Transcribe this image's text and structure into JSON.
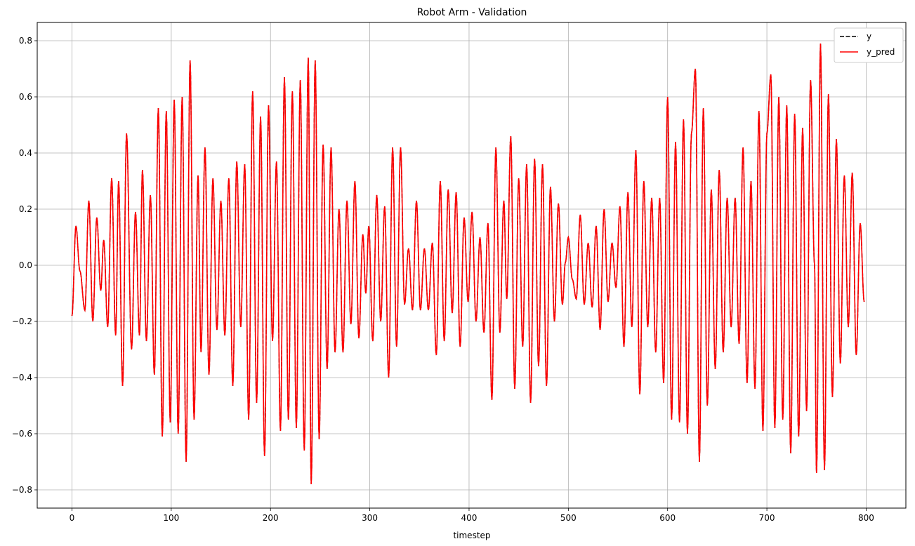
{
  "chart_data": {
    "type": "line",
    "title": "Robot Arm - Validation",
    "xlabel": "timestep",
    "ylabel": "",
    "xlim": [
      -35,
      840
    ],
    "ylim": [
      -0.865,
      0.865
    ],
    "xticks": [
      0,
      100,
      200,
      300,
      400,
      500,
      600,
      700,
      800
    ],
    "yticks": [
      -0.8,
      -0.6,
      -0.4,
      -0.2,
      0.0,
      0.2,
      0.4,
      0.6,
      0.8
    ],
    "ytick_labels": [
      "−0.8",
      "−0.6",
      "−0.4",
      "−0.2",
      "0.0",
      "0.2",
      "0.4",
      "0.6",
      "0.8"
    ],
    "grid": true,
    "legend_position": "top-right",
    "series": [
      {
        "name": "y",
        "color": "#000000",
        "style": "dashed"
      },
      {
        "name": "y_pred",
        "color": "#ff0000",
        "style": "solid"
      }
    ],
    "extrema": [
      [
        0,
        -0.18
      ],
      [
        4,
        0.14
      ],
      [
        8,
        -0.02
      ],
      [
        13,
        -0.16
      ],
      [
        17,
        0.23
      ],
      [
        21,
        -0.2
      ],
      [
        25,
        0.17
      ],
      [
        29,
        -0.09
      ],
      [
        32,
        0.09
      ],
      [
        36,
        -0.22
      ],
      [
        40,
        0.31
      ],
      [
        44,
        -0.25
      ],
      [
        47,
        0.3
      ],
      [
        51,
        -0.43
      ],
      [
        55,
        0.47
      ],
      [
        60,
        -0.3
      ],
      [
        64,
        0.19
      ],
      [
        68,
        -0.25
      ],
      [
        71,
        0.34
      ],
      [
        75,
        -0.27
      ],
      [
        79,
        0.25
      ],
      [
        83,
        -0.39
      ],
      [
        87,
        0.56
      ],
      [
        91,
        -0.61
      ],
      [
        95,
        0.55
      ],
      [
        99,
        -0.56
      ],
      [
        103,
        0.59
      ],
      [
        107,
        -0.6
      ],
      [
        111,
        0.6
      ],
      [
        115,
        -0.7
      ],
      [
        119,
        0.73
      ],
      [
        123,
        -0.55
      ],
      [
        127,
        0.32
      ],
      [
        130,
        -0.31
      ],
      [
        134,
        0.42
      ],
      [
        138,
        -0.39
      ],
      [
        142,
        0.31
      ],
      [
        146,
        -0.23
      ],
      [
        150,
        0.23
      ],
      [
        154,
        -0.25
      ],
      [
        158,
        0.31
      ],
      [
        162,
        -0.43
      ],
      [
        166,
        0.37
      ],
      [
        170,
        -0.22
      ],
      [
        174,
        0.36
      ],
      [
        178,
        -0.55
      ],
      [
        182,
        0.62
      ],
      [
        186,
        -0.49
      ],
      [
        190,
        0.53
      ],
      [
        194,
        -0.68
      ],
      [
        198,
        0.57
      ],
      [
        202,
        -0.27
      ],
      [
        206,
        0.37
      ],
      [
        210,
        -0.59
      ],
      [
        214,
        0.67
      ],
      [
        218,
        -0.55
      ],
      [
        222,
        0.62
      ],
      [
        226,
        -0.58
      ],
      [
        230,
        0.66
      ],
      [
        234,
        -0.66
      ],
      [
        238,
        0.74
      ],
      [
        241,
        -0.78
      ],
      [
        245,
        0.73
      ],
      [
        249,
        -0.62
      ],
      [
        253,
        0.43
      ],
      [
        257,
        -0.37
      ],
      [
        261,
        0.42
      ],
      [
        265,
        -0.31
      ],
      [
        269,
        0.2
      ],
      [
        273,
        -0.31
      ],
      [
        277,
        0.23
      ],
      [
        281,
        -0.21
      ],
      [
        285,
        0.3
      ],
      [
        289,
        -0.26
      ],
      [
        293,
        0.11
      ],
      [
        296,
        -0.1
      ],
      [
        299,
        0.14
      ],
      [
        303,
        -0.27
      ],
      [
        307,
        0.25
      ],
      [
        311,
        -0.2
      ],
      [
        315,
        0.21
      ],
      [
        319,
        -0.4
      ],
      [
        323,
        0.42
      ],
      [
        327,
        -0.29
      ],
      [
        331,
        0.42
      ],
      [
        335,
        -0.14
      ],
      [
        339,
        0.06
      ],
      [
        343,
        -0.16
      ],
      [
        347,
        0.23
      ],
      [
        351,
        -0.16
      ],
      [
        355,
        0.06
      ],
      [
        359,
        -0.16
      ],
      [
        363,
        0.08
      ],
      [
        367,
        -0.32
      ],
      [
        371,
        0.3
      ],
      [
        375,
        -0.27
      ],
      [
        379,
        0.27
      ],
      [
        383,
        -0.17
      ],
      [
        387,
        0.26
      ],
      [
        391,
        -0.29
      ],
      [
        395,
        0.17
      ],
      [
        399,
        -0.13
      ],
      [
        403,
        0.19
      ],
      [
        407,
        -0.2
      ],
      [
        411,
        0.1
      ],
      [
        415,
        -0.24
      ],
      [
        419,
        0.15
      ],
      [
        423,
        -0.48
      ],
      [
        427,
        0.42
      ],
      [
        431,
        -0.24
      ],
      [
        435,
        0.23
      ],
      [
        438,
        -0.12
      ],
      [
        442,
        0.46
      ],
      [
        446,
        -0.44
      ],
      [
        450,
        0.31
      ],
      [
        454,
        -0.29
      ],
      [
        458,
        0.36
      ],
      [
        462,
        -0.49
      ],
      [
        466,
        0.38
      ],
      [
        470,
        -0.36
      ],
      [
        474,
        0.36
      ],
      [
        478,
        -0.43
      ],
      [
        482,
        0.28
      ],
      [
        486,
        -0.2
      ],
      [
        490,
        0.22
      ],
      [
        494,
        -0.14
      ],
      [
        497,
        0.01
      ],
      [
        500,
        0.1
      ],
      [
        504,
        -0.05
      ],
      [
        508,
        -0.12
      ],
      [
        512,
        0.18
      ],
      [
        516,
        -0.14
      ],
      [
        520,
        0.08
      ],
      [
        524,
        -0.15
      ],
      [
        528,
        0.14
      ],
      [
        532,
        -0.23
      ],
      [
        536,
        0.2
      ],
      [
        540,
        -0.13
      ],
      [
        544,
        0.08
      ],
      [
        548,
        -0.08
      ],
      [
        552,
        0.21
      ],
      [
        556,
        -0.29
      ],
      [
        560,
        0.26
      ],
      [
        564,
        -0.22
      ],
      [
        568,
        0.41
      ],
      [
        572,
        -0.46
      ],
      [
        576,
        0.3
      ],
      [
        580,
        -0.22
      ],
      [
        584,
        0.24
      ],
      [
        588,
        -0.31
      ],
      [
        592,
        0.24
      ],
      [
        596,
        -0.42
      ],
      [
        600,
        0.6
      ],
      [
        604,
        -0.55
      ],
      [
        608,
        0.44
      ],
      [
        612,
        -0.56
      ],
      [
        616,
        0.52
      ],
      [
        620,
        -0.6
      ],
      [
        624,
        0.47
      ],
      [
        628,
        0.7
      ],
      [
        632,
        -0.7
      ],
      [
        636,
        0.56
      ],
      [
        640,
        -0.5
      ],
      [
        644,
        0.27
      ],
      [
        648,
        -0.37
      ],
      [
        652,
        0.34
      ],
      [
        656,
        -0.31
      ],
      [
        660,
        0.24
      ],
      [
        664,
        -0.22
      ],
      [
        668,
        0.24
      ],
      [
        672,
        -0.28
      ],
      [
        676,
        0.42
      ],
      [
        680,
        -0.42
      ],
      [
        684,
        0.3
      ],
      [
        688,
        -0.44
      ],
      [
        692,
        0.55
      ],
      [
        696,
        -0.59
      ],
      [
        700,
        0.47
      ],
      [
        704,
        0.68
      ],
      [
        708,
        -0.58
      ],
      [
        712,
        0.6
      ],
      [
        716,
        -0.55
      ],
      [
        720,
        0.57
      ],
      [
        724,
        -0.67
      ],
      [
        728,
        0.54
      ],
      [
        732,
        -0.61
      ],
      [
        736,
        0.49
      ],
      [
        740,
        -0.52
      ],
      [
        744,
        0.66
      ],
      [
        748,
        0.0
      ],
      [
        750,
        -0.74
      ],
      [
        754,
        0.79
      ],
      [
        758,
        -0.73
      ],
      [
        762,
        0.61
      ],
      [
        766,
        -0.47
      ],
      [
        770,
        0.45
      ],
      [
        774,
        -0.35
      ],
      [
        778,
        0.32
      ],
      [
        782,
        -0.22
      ],
      [
        786,
        0.33
      ],
      [
        790,
        -0.32
      ],
      [
        794,
        0.15
      ],
      [
        798,
        -0.13
      ]
    ]
  }
}
